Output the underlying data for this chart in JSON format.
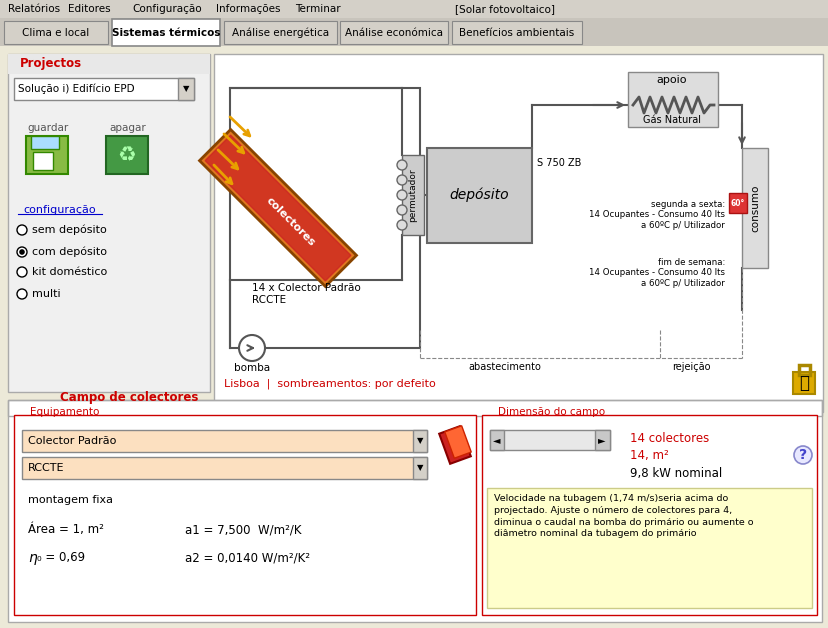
{
  "title": "[Solar fotovoltaico]",
  "menu_items": [
    "Relatórios",
    "Editores",
    "Configuração",
    "Informações",
    "Terminar"
  ],
  "tabs": [
    "Clima e local",
    "Sistemas térmicos",
    "Análise energética",
    "Análise económica",
    "Benefícios ambientais"
  ],
  "active_tab": 1,
  "bg_color": "#d4d0c8",
  "panel_bg": "#ece9d8",
  "white": "#ffffff",
  "section_title_color": "#cc0000",
  "red_text": "#cc0000",
  "dark_text": "#000000",
  "gray_text": "#555555",
  "blue_link": "#0000cc",
  "orange_collector": "#e07820",
  "red_collector": "#cc2222",
  "collector_label": "colectores",
  "pump_label": "bomba",
  "deposit_label": "depósito",
  "deposit_sub": "S 750 ZB",
  "permutador_label": "permutador",
  "apoio_label": "apoio",
  "gas_label": "Gás Natural",
  "consumo_label": "consumo",
  "abastecimento_label": "abastecimento",
  "rejeicao_label": "rejeição",
  "schedule1": "segunda a sexta:\n14 Ocupantes - Consumo 40 lts\na 60ºC p/ Utilizador",
  "schedule2": "fim de semana:\n14 Ocupantes - Consumo 40 lts\na 60ºC p/ Utilizador",
  "location_text": "Lisboa  |  sombreamentos: por defeito",
  "campo_title": "Campo de colectores",
  "equip_title": "Equipamento",
  "dim_title": "Dimensão do campo",
  "dropdown1": "Colector Padrão",
  "dropdown2": "RCCTE",
  "montagem": "montagem fixa",
  "area_text": "Área = 1, m²",
  "a1_text": "a1 = 7,500  W/m²/K",
  "a2_text": "a2 = 0,0140 W/m²/K²",
  "dim_values": [
    "14 colectores",
    "14, m²",
    "9,8 kW nominal"
  ],
  "warning_text": "Velocidade na tubagem (1,74 m/s)seria acima do\nprojectado. Ajuste o número de colectores para 4,\ndiminua o caudal na bomba do primário ou aumente o\ndiâmetro nominal da tubagem do primário",
  "projectos_title": "Projectos",
  "dropdown_proj": "Solução i) Edifício EPD",
  "guardar_label": "guardar",
  "apagar_label": "apagar",
  "config_label": "configuração",
  "radio_options": [
    "sem depósito",
    "com depósito",
    "kit doméstico",
    "multi"
  ],
  "radio_selected": 1,
  "warning_bg": "#ffffcc",
  "temp_label": "60°",
  "collector_sub1": "14 x Colector Padrão",
  "collector_sub2": "RCCTE"
}
